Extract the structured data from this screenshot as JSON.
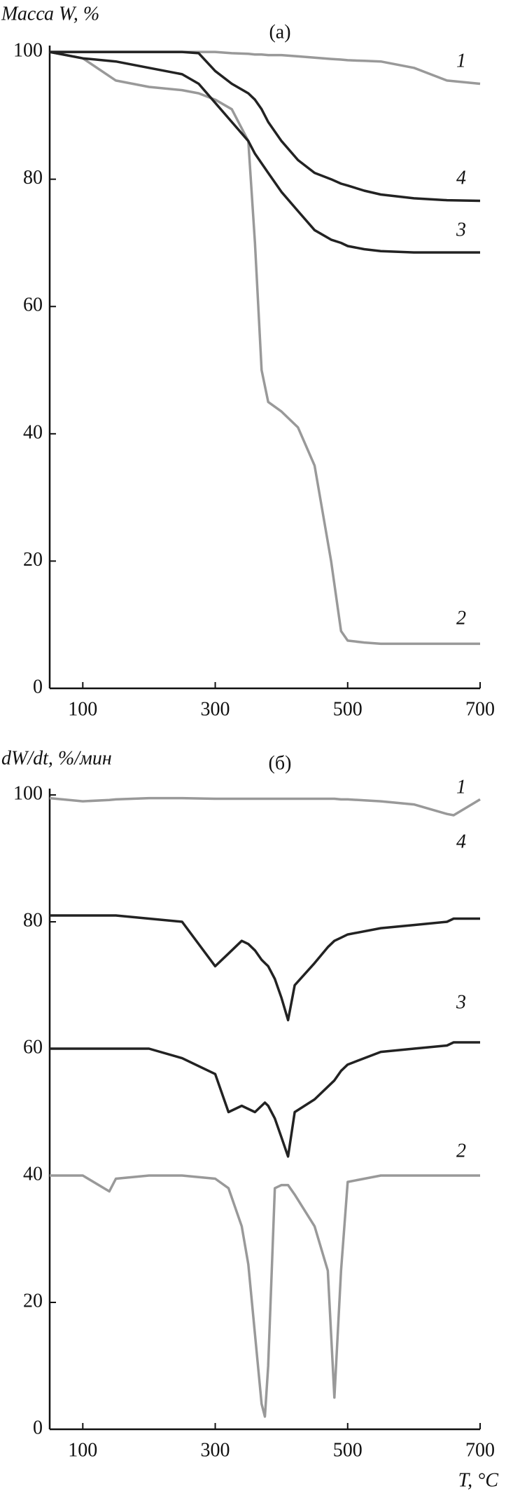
{
  "chart_data": [
    {
      "type": "line",
      "title": "(а)",
      "y_label": "Масса W, %",
      "x": [
        50,
        100,
        150,
        200,
        250,
        275,
        300,
        325,
        350,
        360,
        370,
        380,
        400,
        425,
        450,
        475,
        490,
        500,
        525,
        550,
        600,
        650,
        700
      ],
      "xlim": [
        50,
        700
      ],
      "xticks": [
        100,
        300,
        500,
        700
      ],
      "ylim": [
        0,
        101
      ],
      "yticks": [
        0,
        20,
        40,
        60,
        80,
        100
      ],
      "series": [
        {
          "name": "1",
          "color": "#999999",
          "values": [
            100,
            100,
            100,
            100,
            100,
            100,
            100,
            99.8,
            99.7,
            99.6,
            99.6,
            99.5,
            99.5,
            99.3,
            99.1,
            98.9,
            98.8,
            98.7,
            98.6,
            98.5,
            97.5,
            95.5,
            95
          ]
        },
        {
          "name": "2",
          "color": "#999999",
          "values": [
            100,
            99,
            95.5,
            94.5,
            94,
            93.5,
            92.5,
            91,
            86,
            70,
            50,
            45,
            43.5,
            41,
            35,
            20,
            9,
            7.5,
            7.2,
            7,
            7,
            7,
            7
          ]
        },
        {
          "name": "3",
          "color": "#222222",
          "values": [
            100,
            99,
            98.5,
            97.5,
            96.5,
            95,
            92,
            89,
            86,
            84,
            82.5,
            81,
            78,
            75,
            72,
            70.5,
            70,
            69.5,
            69,
            68.7,
            68.5,
            68.5,
            68.5
          ]
        },
        {
          "name": "4",
          "color": "#222222",
          "values": [
            100,
            100,
            100,
            100,
            100,
            99.8,
            97,
            95,
            93.5,
            92.5,
            91,
            89,
            86,
            83,
            81,
            80,
            79.3,
            79,
            78.2,
            77.6,
            77,
            76.7,
            76.6
          ]
        }
      ]
    },
    {
      "type": "line",
      "title": "(б)",
      "y_label": "dW/dt, %/мин",
      "x_label": "T, °C",
      "x": [
        50,
        100,
        140,
        150,
        200,
        250,
        300,
        320,
        340,
        350,
        360,
        370,
        375,
        380,
        390,
        400,
        410,
        420,
        450,
        470,
        480,
        490,
        500,
        550,
        600,
        650,
        660,
        700
      ],
      "xlim": [
        50,
        700
      ],
      "xticks": [
        100,
        300,
        500,
        700
      ],
      "ylim": [
        0,
        101
      ],
      "yticks": [
        0,
        20,
        40,
        60,
        80,
        100
      ],
      "series": [
        {
          "name": "1",
          "color": "#999999",
          "values": [
            99.5,
            99,
            99.2,
            99.3,
            99.5,
            99.5,
            99.4,
            99.4,
            99.4,
            99.4,
            99.4,
            99.4,
            99.4,
            99.4,
            99.4,
            99.4,
            99.4,
            99.4,
            99.4,
            99.4,
            99.4,
            99.3,
            99.3,
            99,
            98.5,
            97,
            96.8,
            99.3
          ]
        },
        {
          "name": "2",
          "color": "#999999",
          "values": [
            40,
            40,
            37.5,
            39.5,
            40,
            40,
            39.5,
            38,
            32,
            26,
            15,
            4,
            2,
            10,
            38,
            38.5,
            38.5,
            37,
            32,
            25,
            5,
            25,
            39,
            40,
            40,
            40,
            40,
            40
          ]
        },
        {
          "name": "3",
          "color": "#222222",
          "values": [
            60,
            60,
            60,
            60,
            60,
            58.5,
            56,
            50,
            51,
            50.5,
            50,
            51,
            51.5,
            51,
            49,
            46,
            43,
            50,
            52,
            54,
            55,
            56.5,
            57.5,
            59.5,
            60,
            60.5,
            61,
            61
          ]
        },
        {
          "name": "4",
          "color": "#222222",
          "values": [
            81,
            81,
            81,
            81,
            80.5,
            80,
            73,
            75,
            77,
            76.5,
            75.5,
            74,
            73.5,
            73,
            71,
            68,
            64.5,
            70,
            73.5,
            76,
            77,
            77.5,
            78,
            79,
            79.5,
            80,
            80.5,
            80.5
          ]
        }
      ]
    }
  ]
}
